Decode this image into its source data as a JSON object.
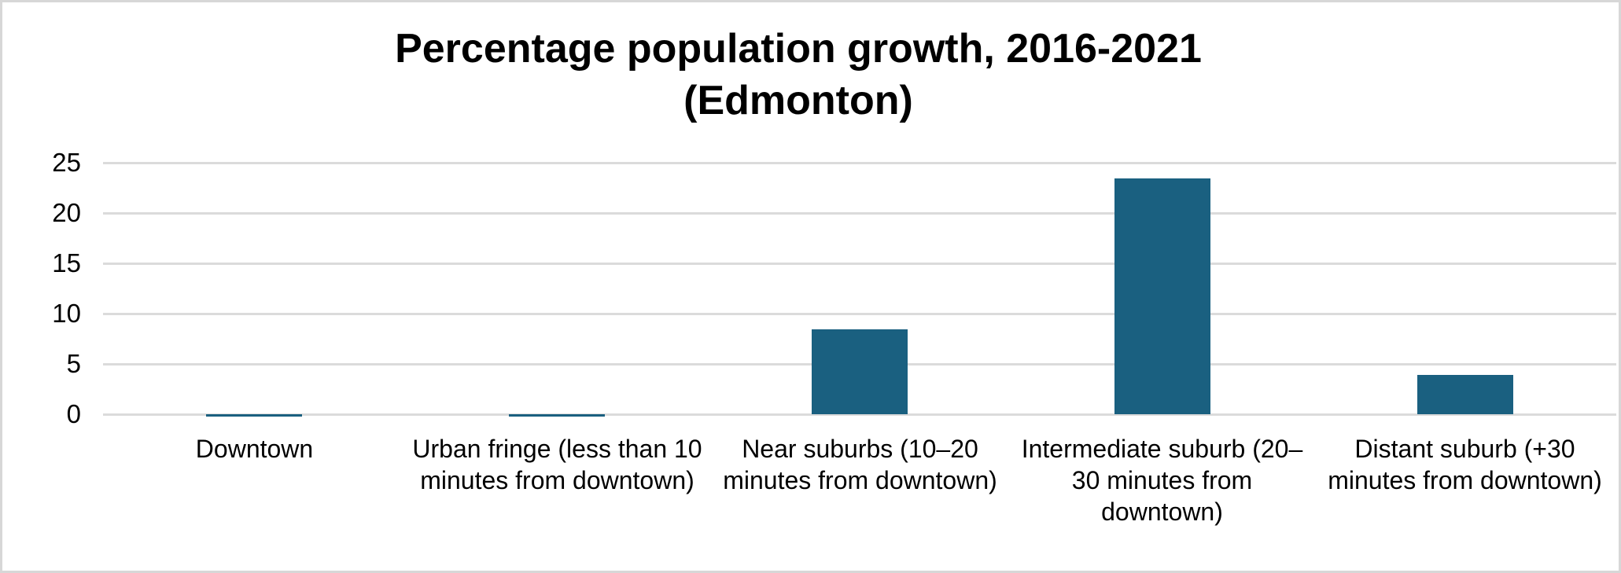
{
  "chart_data": {
    "type": "bar",
    "title": "Percentage population growth, 2016-2021 (Edmonton)",
    "title_lines": [
      "Percentage population growth, 2016-2021",
      "(Edmonton)"
    ],
    "categories": [
      "Downtown",
      "Urban fringe (less than 10 minutes from downtown)",
      "Near suburbs (10–20 minutes from downtown)",
      "Intermediate suburb (20–30 minutes from downtown)",
      "Distant suburb (+30 minutes from downtown)"
    ],
    "category_display_lines": [
      [
        "Downtown"
      ],
      [
        "Urban fringe (less than 10",
        "minutes from downtown)"
      ],
      [
        "Near suburbs (10–20",
        "minutes from downtown)"
      ],
      [
        "Intermediate suburb (20–",
        "30 minutes from",
        "downtown)"
      ],
      [
        "Distant suburb (+30",
        "minutes from downtown)"
      ]
    ],
    "values": [
      -0.2,
      -0.2,
      8.4,
      23.4,
      3.9
    ],
    "unit": "percent",
    "xlabel": "",
    "ylabel": "",
    "ylim": [
      0,
      25
    ],
    "y_ticks": [
      25,
      20,
      15,
      10,
      5,
      0
    ],
    "grid": true,
    "legend": false,
    "bar_color": "#1A6080",
    "gridline_color": "#DBDBDB",
    "text_color": "#000000",
    "background": "#FFFFFF",
    "border_color": "#D7D7D7"
  }
}
